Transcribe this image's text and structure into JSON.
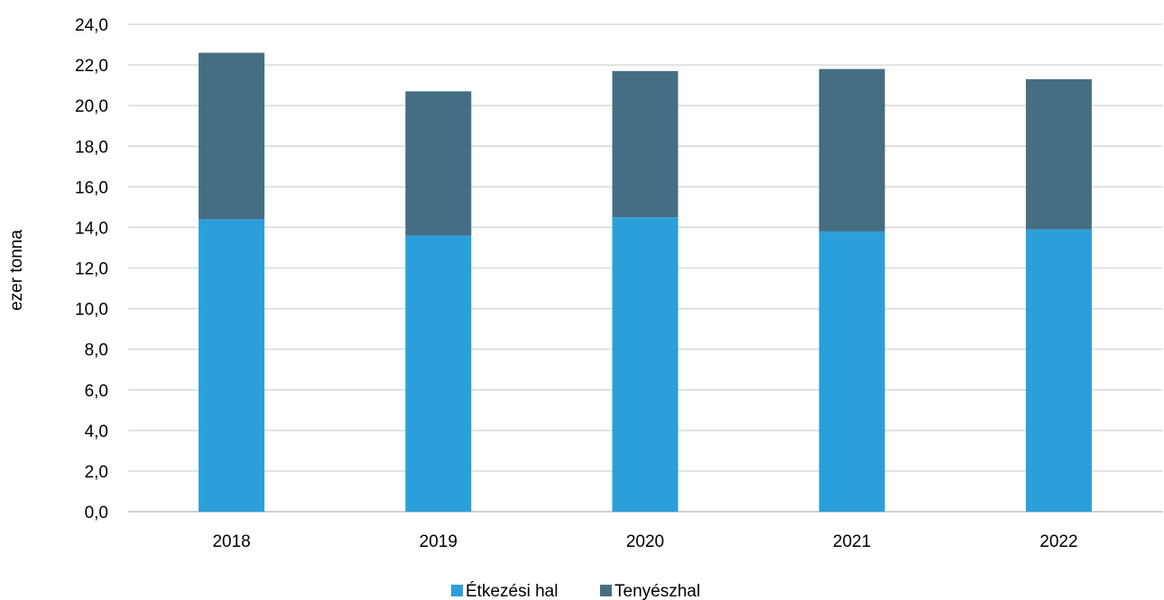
{
  "chart_data": {
    "type": "bar",
    "stacked": true,
    "categories": [
      "2018",
      "2019",
      "2020",
      "2021",
      "2022"
    ],
    "series": [
      {
        "name": "Étkezési hal",
        "color": "#2b9fda",
        "values": [
          14.4,
          13.6,
          14.5,
          13.8,
          13.9
        ]
      },
      {
        "name": "Tenyészhal",
        "color": "#466e82",
        "values": [
          8.2,
          7.1,
          7.2,
          8.0,
          7.4
        ]
      }
    ],
    "title": "",
    "xlabel": "",
    "ylabel": "ezer tonna",
    "ylim": [
      0,
      24
    ],
    "y_ticks": [
      "0,0",
      "2,0",
      "4,0",
      "6,0",
      "8,0",
      "10,0",
      "12,0",
      "14,0",
      "16,0",
      "18,0",
      "20,0",
      "22,0",
      "24,0"
    ],
    "grid": true,
    "legend_position": "bottom"
  }
}
